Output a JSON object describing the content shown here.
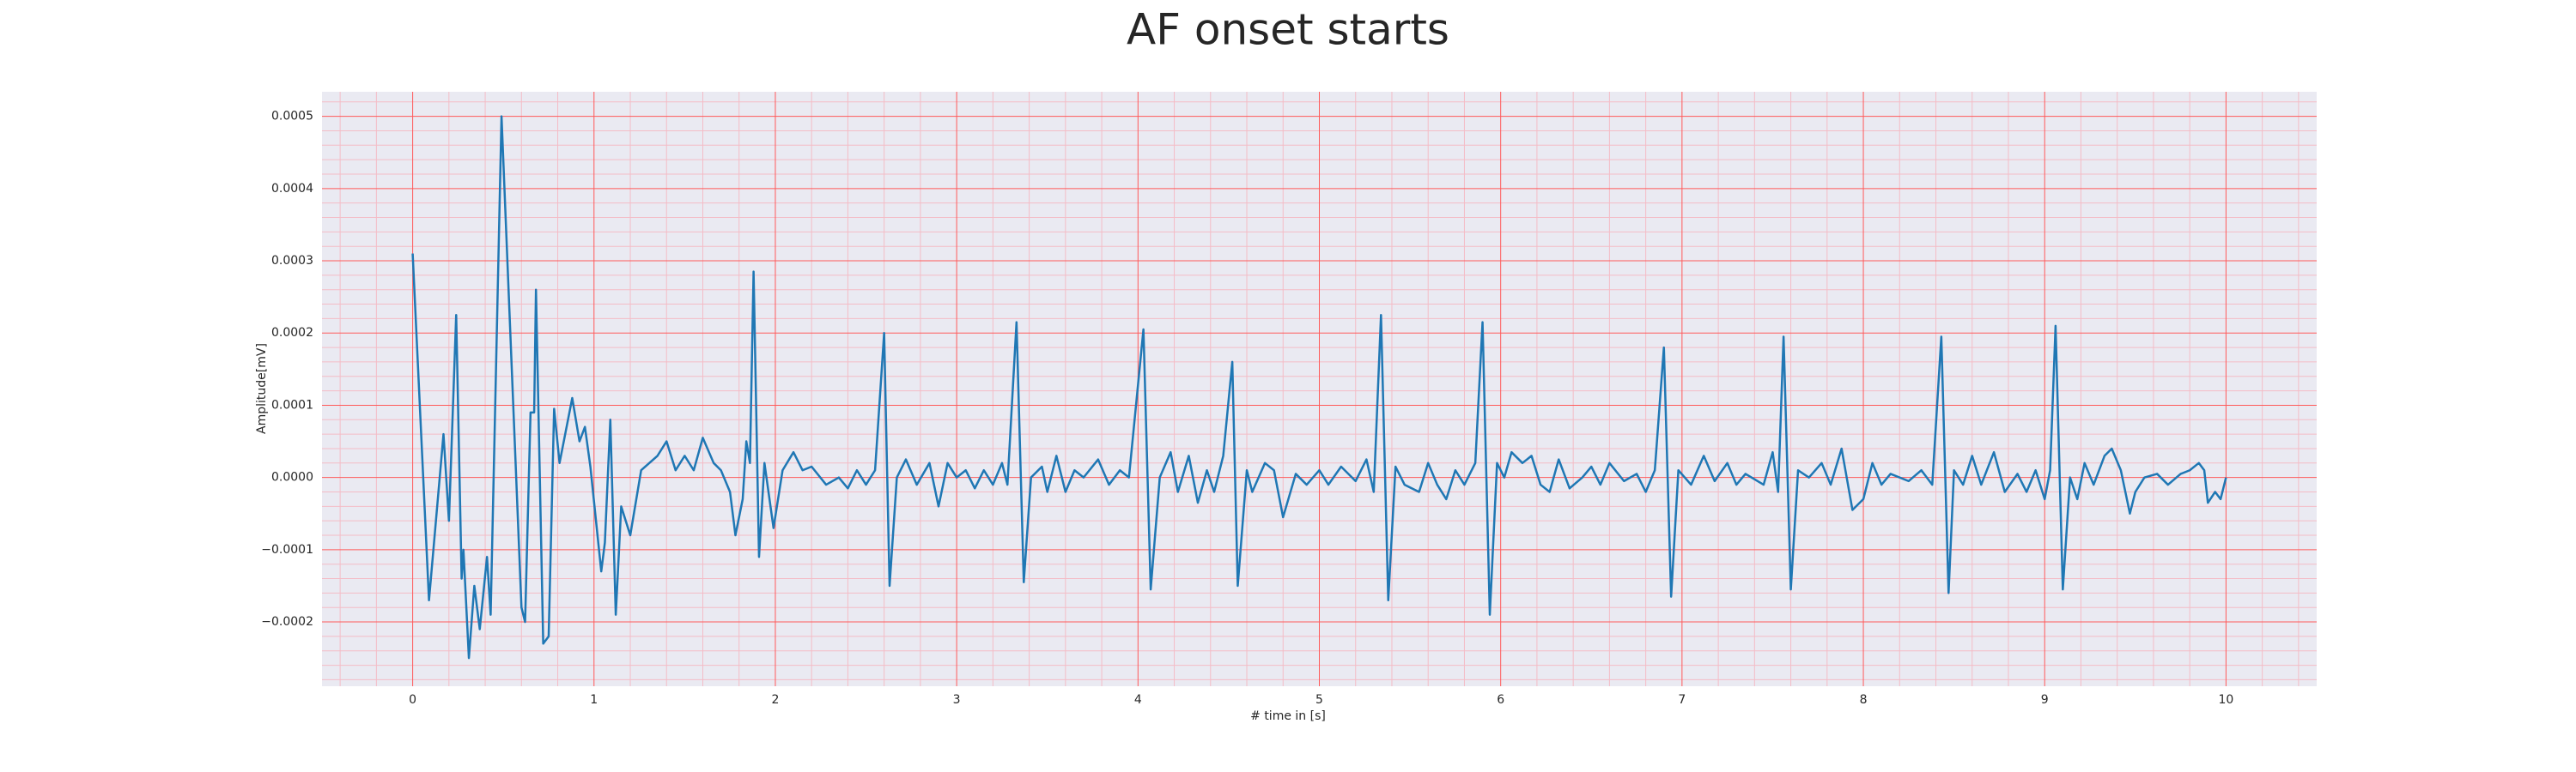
{
  "chart_data": {
    "type": "line",
    "title": "AF onset starts",
    "xlabel": "# time in [s]",
    "ylabel": "Amplitude[mV]",
    "color": "#1f77b4",
    "background": "#eaeaf2",
    "grid": true,
    "grid_color": "#ff5a5a",
    "minor_grid": true,
    "minor_grid_color": "#f4bcc6",
    "xlim": [
      -0.5,
      10.5
    ],
    "ylim": [
      -0.000289,
      0.000534
    ],
    "xticks": [
      0,
      1,
      2,
      3,
      4,
      5,
      6,
      7,
      8,
      9,
      10
    ],
    "yticks": [
      {
        "value": -0.0002,
        "label": "−0.0002"
      },
      {
        "value": -0.0001,
        "label": "−0.0001"
      },
      {
        "value": 0,
        "label": "0.0000"
      },
      {
        "value": 0.0001,
        "label": "0.0001"
      },
      {
        "value": 0.0002,
        "label": "0.0002"
      },
      {
        "value": 0.0003,
        "label": "0.0003"
      },
      {
        "value": 0.0004,
        "label": "0.0004"
      },
      {
        "value": 0.0005,
        "label": "0.0005"
      }
    ],
    "x": [
      0,
      0.09,
      0.17,
      0.2,
      0.24,
      0.27,
      0.28,
      0.31,
      0.34,
      0.37,
      0.41,
      0.43,
      0.49,
      0.6,
      0.62,
      0.65,
      0.67,
      0.68,
      0.72,
      0.75,
      0.78,
      0.81,
      0.88,
      0.92,
      0.95,
      0.98,
      1.04,
      1.06,
      1.09,
      1.12,
      1.15,
      1.2,
      1.26,
      1.35,
      1.4,
      1.45,
      1.5,
      1.55,
      1.6,
      1.66,
      1.7,
      1.75,
      1.78,
      1.82,
      1.84,
      1.86,
      1.88,
      1.91,
      1.94,
      1.99,
      2.04,
      2.1,
      2.15,
      2.2,
      2.28,
      2.35,
      2.4,
      2.45,
      2.5,
      2.55,
      2.6,
      2.63,
      2.67,
      2.72,
      2.78,
      2.85,
      2.9,
      2.95,
      3,
      3.05,
      3.1,
      3.15,
      3.2,
      3.25,
      3.28,
      3.33,
      3.37,
      3.41,
      3.47,
      3.5,
      3.55,
      3.6,
      3.65,
      3.7,
      3.78,
      3.84,
      3.9,
      3.95,
      4.03,
      4.07,
      4.12,
      4.18,
      4.22,
      4.28,
      4.33,
      4.38,
      4.42,
      4.47,
      4.52,
      4.55,
      4.6,
      4.63,
      4.7,
      4.75,
      4.8,
      4.87,
      4.93,
      5,
      5.05,
      5.12,
      5.2,
      5.26,
      5.3,
      5.34,
      5.38,
      5.42,
      5.47,
      5.55,
      5.6,
      5.65,
      5.7,
      5.75,
      5.8,
      5.86,
      5.9,
      5.94,
      5.98,
      6.02,
      6.06,
      6.12,
      6.17,
      6.22,
      6.27,
      6.32,
      6.38,
      6.45,
      6.5,
      6.55,
      6.6,
      6.68,
      6.75,
      6.8,
      6.85,
      6.9,
      6.94,
      6.98,
      7.05,
      7.12,
      7.18,
      7.25,
      7.3,
      7.35,
      7.45,
      7.5,
      7.53,
      7.56,
      7.6,
      7.64,
      7.7,
      7.77,
      7.82,
      7.88,
      7.94,
      8,
      8.05,
      8.1,
      8.15,
      8.25,
      8.32,
      8.38,
      8.43,
      8.47,
      8.5,
      8.55,
      8.6,
      8.65,
      8.72,
      8.78,
      8.85,
      8.9,
      8.95,
      9,
      9.03,
      9.06,
      9.1,
      9.14,
      9.18,
      9.22,
      9.27,
      9.33,
      9.37,
      9.42,
      9.47,
      9.5,
      9.55,
      9.62,
      9.68,
      9.75,
      9.8,
      9.85,
      9.88,
      9.9,
      9.94,
      9.97,
      10
    ],
    "values": [
      0.00031,
      -0.00017,
      6e-05,
      -6e-05,
      0.000225,
      -0.00014,
      -0.0001,
      -0.00025,
      -0.00015,
      -0.00021,
      -0.00011,
      -0.00019,
      0.0005,
      -0.00018,
      -0.0002,
      9e-05,
      9e-05,
      0.00026,
      -0.00023,
      -0.00022,
      9.5e-05,
      2e-05,
      0.00011,
      5e-05,
      7e-05,
      1.5e-05,
      -0.00013,
      -9e-05,
      8e-05,
      -0.00019,
      -4e-05,
      -8e-05,
      1e-05,
      3e-05,
      5e-05,
      1e-05,
      3e-05,
      1e-05,
      5.5e-05,
      2e-05,
      1e-05,
      -2e-05,
      -8e-05,
      -3e-05,
      5e-05,
      2e-05,
      0.000285,
      -0.00011,
      2e-05,
      -7e-05,
      1e-05,
      3.5e-05,
      1e-05,
      1.5e-05,
      -1e-05,
      0,
      -1.5e-05,
      1e-05,
      -1e-05,
      1e-05,
      0.0002,
      -0.00015,
      0,
      2.5e-05,
      -1e-05,
      2e-05,
      -4e-05,
      2e-05,
      0,
      1e-05,
      -1.5e-05,
      1e-05,
      -1e-05,
      2e-05,
      -1e-05,
      0.000215,
      -0.000145,
      0,
      1.5e-05,
      -2e-05,
      3e-05,
      -2e-05,
      1e-05,
      0,
      2.5e-05,
      -1e-05,
      1e-05,
      0,
      0.000205,
      -0.000155,
      0,
      3.5e-05,
      -2e-05,
      3e-05,
      -3.5e-05,
      1e-05,
      -2e-05,
      3e-05,
      0.00016,
      -0.00015,
      1e-05,
      -2e-05,
      2e-05,
      1e-05,
      -5.5e-05,
      5e-06,
      -1e-05,
      1e-05,
      -1e-05,
      1.5e-05,
      -5e-06,
      2.5e-05,
      -2e-05,
      0.000225,
      -0.00017,
      1.5e-05,
      -1e-05,
      -2e-05,
      2e-05,
      -1e-05,
      -3e-05,
      1e-05,
      -1e-05,
      2e-05,
      0.000215,
      -0.00019,
      2e-05,
      0,
      3.5e-05,
      2e-05,
      3e-05,
      -1e-05,
      -2e-05,
      2.5e-05,
      -1.5e-05,
      0,
      1.5e-05,
      -1e-05,
      2e-05,
      -5e-06,
      5e-06,
      -2e-05,
      1e-05,
      0.00018,
      -0.000165,
      1e-05,
      -1e-05,
      3e-05,
      -5e-06,
      2e-05,
      -1e-05,
      5e-06,
      -1e-05,
      3.5e-05,
      -2e-05,
      0.000195,
      -0.000155,
      1e-05,
      0,
      2e-05,
      -1e-05,
      4e-05,
      -4.5e-05,
      -3e-05,
      2e-05,
      -1e-05,
      5e-06,
      -5e-06,
      1e-05,
      -1e-05,
      0.000195,
      -0.00016,
      1e-05,
      -1e-05,
      3e-05,
      -1e-05,
      3.5e-05,
      -2e-05,
      5e-06,
      -2e-05,
      1e-05,
      -3e-05,
      1e-05,
      0.00021,
      -0.000155,
      0,
      -3e-05,
      2e-05,
      -1e-05,
      3e-05,
      4e-05,
      1e-05,
      -5e-05,
      -2e-05,
      0,
      5e-06,
      -1e-05,
      5e-06,
      1e-05,
      2e-05,
      1e-05,
      -3.5e-05,
      -2e-05,
      -3e-05,
      0
    ]
  }
}
